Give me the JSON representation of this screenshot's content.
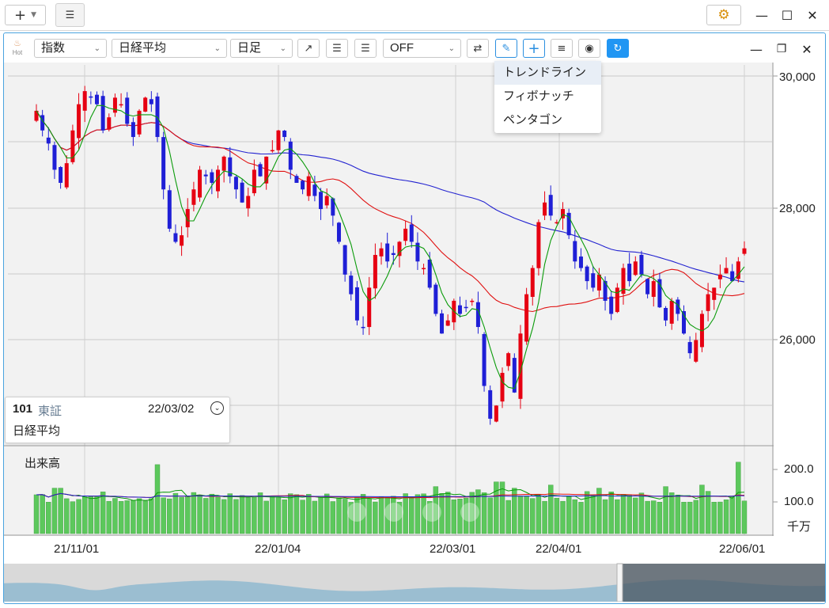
{
  "topbar": {
    "add_icon": "plus-icon",
    "list_icon": "list-icon",
    "settings_icon": "gear-icon"
  },
  "toolbar": {
    "hot_label": "Hot",
    "type_select": "指数",
    "symbol_select": "日経平均",
    "period_select": "日足",
    "indicator_select": "OFF"
  },
  "draw_menu": {
    "items": [
      "トレンドライン",
      "フィボナッチ",
      "ペンタゴン"
    ]
  },
  "info_card": {
    "code": "101",
    "market": "東証",
    "date": "22/03/02",
    "name": "日経平均"
  },
  "volume_panel": {
    "title": "出来高",
    "unit": "千万"
  },
  "colors": {
    "up": "#e60012",
    "down": "#1f1fd6",
    "ma_short": "#0a9b0a",
    "ma_mid": "#e01010",
    "ma_long": "#2222d0",
    "volume_bar": "#5cc85c",
    "accent": "#2196f3"
  },
  "chart_data": {
    "type": "candlestick",
    "y_ticks": [
      "30,000",
      "28,000",
      "26,000"
    ],
    "volume_ticks": [
      "200.0",
      "100.0"
    ],
    "x_ticks": [
      "21/11/01",
      "22/01/04",
      "22/03/01",
      "22/04/01",
      "22/06/01"
    ],
    "ylim": [
      24500,
      30300
    ],
    "volume_ylim": [
      0,
      250
    ],
    "close_series": [
      29600,
      29300,
      29100,
      28700,
      28500,
      28800,
      29300,
      29700,
      29900,
      29800,
      29700,
      29300,
      29500,
      29800,
      29700,
      29400,
      29200,
      29600,
      29800,
      29700,
      29200,
      28400,
      27800,
      27600,
      27700,
      28100,
      28400,
      28700,
      28600,
      28500,
      28700,
      28900,
      28600,
      28400,
      28200,
      28300,
      28700,
      28600,
      28900,
      29000,
      29300,
      29200,
      28700,
      28500,
      28400,
      28600,
      28300,
      28100,
      28300,
      28000,
      27600,
      27100,
      26800,
      26400,
      26300,
      26900,
      27400,
      27500,
      27300,
      27400,
      27600,
      27800,
      27600,
      27300,
      27200,
      26900,
      26500,
      26200,
      26400,
      26700,
      26500,
      26600,
      26700,
      26300,
      25400,
      24900,
      25100,
      25600,
      25900,
      25300,
      26200,
      26800,
      27200,
      27900,
      28200,
      28000,
      27900,
      28100,
      27700,
      27300,
      27200,
      27000,
      26900,
      27100,
      26700,
      26500,
      26900,
      27200,
      27000,
      27300,
      27100,
      26800,
      27000,
      26600,
      26400,
      26700,
      26500,
      26200,
      25900,
      26100,
      26500,
      26800,
      26900,
      27100,
      27200,
      27000,
      27300,
      27500
    ]
  },
  "navigator": {
    "controls": [
      "minus-icon",
      "plus-icon",
      "chevron-left-icon",
      "chevron-right-icon"
    ]
  }
}
